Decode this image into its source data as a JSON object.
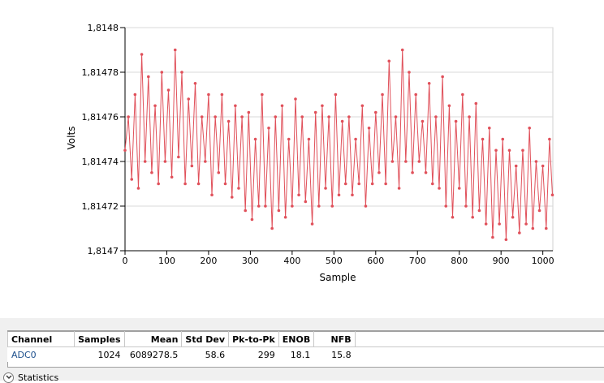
{
  "chart_data": {
    "type": "line",
    "xlabel": "Sample",
    "ylabel": "Volts",
    "xlim": [
      0,
      1024
    ],
    "ylim": [
      1.8147,
      1.8148
    ],
    "x_ticks": [
      0,
      100,
      200,
      300,
      400,
      500,
      600,
      700,
      800,
      900,
      1000
    ],
    "y_ticks": [
      "1,8147",
      "1,81472",
      "1,81474",
      "1,81476",
      "1,81478",
      "1,8148"
    ],
    "y_tick_values": [
      1.8147,
      1.81472,
      1.81474,
      1.81476,
      1.81478,
      1.8148
    ],
    "grid": "horizontal",
    "series_color": "#e0505a",
    "series": [
      {
        "x": [
          0,
          8,
          16,
          24,
          32,
          40,
          48,
          56,
          64,
          72,
          80,
          88,
          96,
          104,
          112,
          120,
          128,
          136,
          144,
          152,
          160,
          168,
          176,
          184,
          192,
          200,
          208,
          216,
          224,
          232,
          240,
          248,
          256,
          264,
          272,
          280,
          288,
          296,
          304,
          312,
          320,
          328,
          336,
          344,
          352,
          360,
          368,
          376,
          384,
          392,
          400,
          408,
          416,
          424,
          432,
          440,
          448,
          456,
          464,
          472,
          480,
          488,
          496,
          504,
          512,
          520,
          528,
          536,
          544,
          552,
          560,
          568,
          576,
          584,
          592,
          600,
          608,
          616,
          624,
          632,
          640,
          648,
          656,
          664,
          672,
          680,
          688,
          696,
          704,
          712,
          720,
          728,
          736,
          744,
          752,
          760,
          768,
          776,
          784,
          792,
          800,
          808,
          816,
          824,
          832,
          840,
          848,
          856,
          864,
          872,
          880,
          888,
          896,
          904,
          912,
          920,
          928,
          936,
          944,
          952,
          960,
          968,
          976,
          984,
          992,
          1000,
          1008,
          1016,
          1023
        ],
        "y": [
          1.814745,
          1.81476,
          1.814732,
          1.81477,
          1.814728,
          1.814788,
          1.81474,
          1.814778,
          1.814735,
          1.814765,
          1.81473,
          1.81478,
          1.81474,
          1.814772,
          1.814733,
          1.81479,
          1.814742,
          1.81478,
          1.81473,
          1.814768,
          1.814738,
          1.814775,
          1.81473,
          1.81476,
          1.81474,
          1.81477,
          1.814725,
          1.81476,
          1.814735,
          1.81477,
          1.81473,
          1.814758,
          1.814724,
          1.814765,
          1.814728,
          1.81476,
          1.814718,
          1.814762,
          1.814714,
          1.81475,
          1.81472,
          1.81477,
          1.81472,
          1.814755,
          1.81471,
          1.81476,
          1.814718,
          1.814765,
          1.814715,
          1.81475,
          1.81472,
          1.814768,
          1.814725,
          1.81476,
          1.814722,
          1.81475,
          1.814712,
          1.814762,
          1.81472,
          1.814765,
          1.814728,
          1.81476,
          1.81472,
          1.81477,
          1.814725,
          1.814758,
          1.81473,
          1.81476,
          1.814725,
          1.81475,
          1.81473,
          1.814765,
          1.81472,
          1.814755,
          1.81473,
          1.814762,
          1.814735,
          1.81477,
          1.81473,
          1.814785,
          1.81474,
          1.81476,
          1.814728,
          1.81479,
          1.81474,
          1.81478,
          1.814735,
          1.81477,
          1.81474,
          1.814758,
          1.814735,
          1.814775,
          1.81473,
          1.81476,
          1.814728,
          1.814778,
          1.81472,
          1.814765,
          1.814715,
          1.814758,
          1.814728,
          1.81477,
          1.81472,
          1.81476,
          1.814715,
          1.814766,
          1.814718,
          1.81475,
          1.814712,
          1.814755,
          1.814706,
          1.814745,
          1.814712,
          1.81475,
          1.814705,
          1.814745,
          1.814715,
          1.814738,
          1.814708,
          1.814745,
          1.814712,
          1.814755,
          1.81471,
          1.81474,
          1.814718,
          1.814738,
          1.81471,
          1.81475,
          1.814725
        ]
      }
    ]
  },
  "table": {
    "headers": [
      "Channel",
      "Samples",
      "Mean",
      "Std Dev",
      "Pk-to-Pk",
      "ENOB",
      "NFB"
    ],
    "rows": [
      [
        "ADC0",
        "1024",
        "6089278.5",
        "58.6",
        "299",
        "18.1",
        "15.8"
      ]
    ]
  },
  "statistics_toggle": {
    "label": "Statistics",
    "icon": "chevron-down-icon"
  }
}
